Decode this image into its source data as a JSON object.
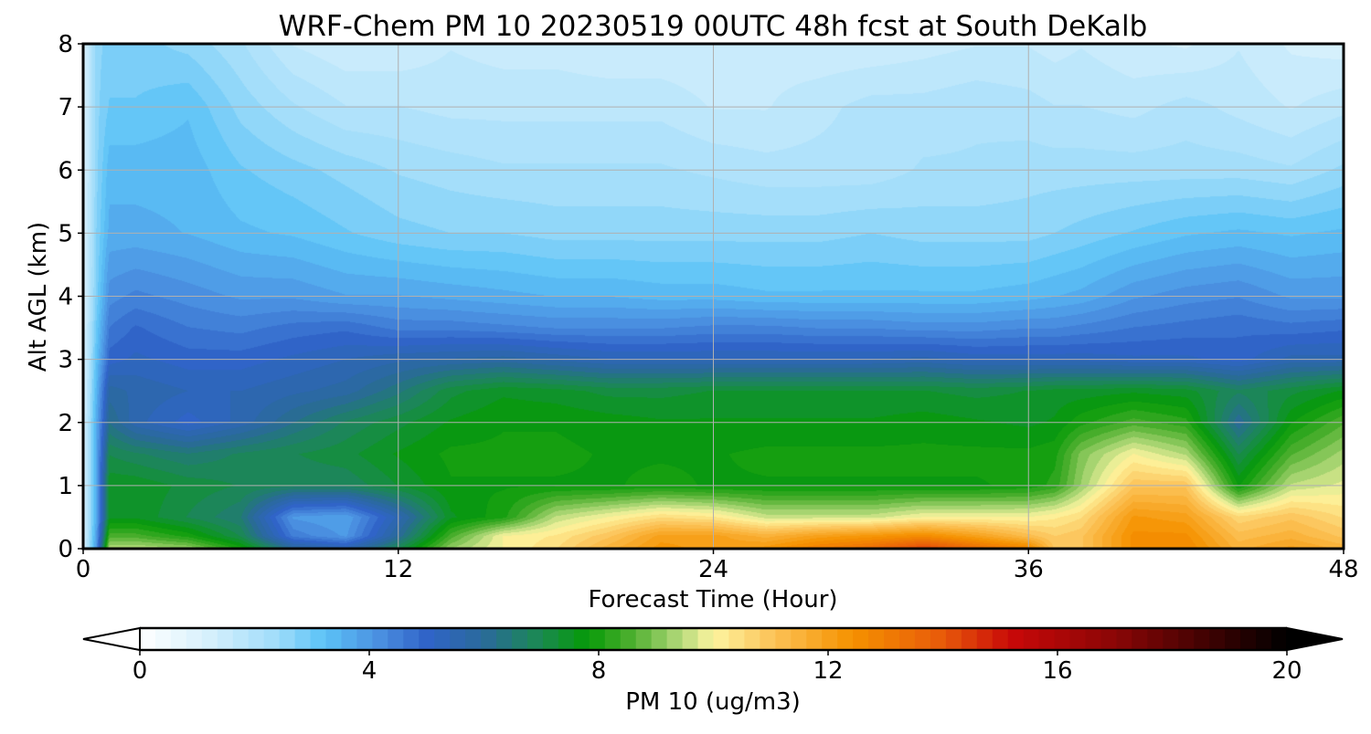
{
  "chart_data": {
    "type": "heatmap",
    "title": "WRF-Chem PM 10  20230519 00UTC 48h fcst at South DeKalb",
    "xlabel": "Forecast Time (Hour)",
    "ylabel": "Alt AGL (km)",
    "xlim": [
      0,
      48
    ],
    "ylim": [
      0,
      8
    ],
    "x_ticks": [
      0,
      12,
      24,
      36,
      48
    ],
    "y_ticks": [
      0,
      1,
      2,
      3,
      4,
      5,
      6,
      7,
      8
    ],
    "grid": true,
    "colorbar": {
      "label": "PM 10  (ug/m3)",
      "ticks": [
        0,
        4,
        8,
        12,
        16,
        20
      ],
      "range": [
        0,
        20
      ],
      "extend": "both",
      "stops": [
        {
          "v": 0,
          "c": "#ffffff"
        },
        {
          "v": 1.2,
          "c": "#d6f0fc"
        },
        {
          "v": 2.4,
          "c": "#9fdcfa"
        },
        {
          "v": 3.2,
          "c": "#5cc3f7"
        },
        {
          "v": 4.2,
          "c": "#4a8ee0"
        },
        {
          "v": 5.0,
          "c": "#3064c8"
        },
        {
          "v": 6.0,
          "c": "#2a6a9a"
        },
        {
          "v": 7.0,
          "c": "#1a8a50"
        },
        {
          "v": 7.8,
          "c": "#069a08"
        },
        {
          "v": 8.6,
          "c": "#50b030"
        },
        {
          "v": 9.4,
          "c": "#b0d878"
        },
        {
          "v": 10.0,
          "c": "#fdf5a0"
        },
        {
          "v": 11.0,
          "c": "#fcc45a"
        },
        {
          "v": 12.4,
          "c": "#f59200"
        },
        {
          "v": 14.0,
          "c": "#e85a0a"
        },
        {
          "v": 15.2,
          "c": "#c80808"
        },
        {
          "v": 17.0,
          "c": "#8a0606"
        },
        {
          "v": 18.6,
          "c": "#400202"
        },
        {
          "v": 20,
          "c": "#000000"
        }
      ]
    },
    "x": [
      0,
      0.5,
      1,
      2,
      4,
      6,
      8,
      10,
      12,
      14,
      16,
      18,
      20,
      22,
      24,
      26,
      28,
      30,
      32,
      34,
      36,
      37,
      38,
      40,
      42,
      44,
      46,
      48
    ],
    "y": [
      0,
      0.2,
      0.5,
      1.0,
      1.5,
      2.0,
      2.5,
      3.0,
      3.5,
      4.0,
      5.0,
      6.0,
      7.0,
      8.0
    ],
    "z": [
      [
        1.0,
        4.0,
        9.5,
        9.5,
        9.2,
        8.0,
        6.0,
        5.5,
        7.0,
        9.2,
        10.0,
        10.5,
        11.5,
        12.3,
        12.0,
        12.3,
        13.0,
        13.5,
        14.5,
        13.5,
        12.8,
        11.0,
        11.0,
        12.5,
        12.7,
        11.5,
        12.0,
        11.5
      ],
      [
        1.0,
        3.8,
        8.5,
        8.5,
        8.0,
        7.0,
        4.5,
        4.0,
        6.0,
        8.5,
        10.0,
        10.3,
        11.0,
        12.0,
        12.0,
        11.5,
        12.0,
        12.3,
        12.6,
        12.0,
        11.2,
        10.8,
        11.0,
        12.5,
        12.5,
        11.2,
        11.5,
        11.0
      ],
      [
        1.0,
        3.6,
        7.5,
        7.5,
        7.0,
        6.5,
        4.0,
        3.8,
        5.5,
        7.5,
        8.0,
        9.5,
        10.0,
        10.5,
        10.3,
        9.6,
        9.6,
        9.6,
        10.0,
        10.0,
        10.0,
        10.2,
        10.5,
        12.2,
        12.0,
        10.6,
        11.0,
        10.5
      ],
      [
        1.0,
        3.6,
        7.5,
        7.5,
        7.2,
        7.0,
        6.8,
        6.8,
        7.3,
        7.8,
        7.8,
        7.8,
        7.8,
        7.9,
        7.8,
        7.8,
        7.8,
        7.8,
        7.8,
        7.8,
        7.9,
        8.2,
        9.2,
        11.0,
        11.0,
        7.8,
        9.5,
        9.8
      ],
      [
        1.0,
        3.6,
        7.0,
        6.8,
        6.5,
        6.8,
        7.0,
        7.2,
        7.6,
        7.9,
        7.9,
        7.9,
        7.8,
        7.8,
        7.8,
        7.9,
        7.9,
        7.9,
        7.9,
        7.9,
        7.9,
        8.0,
        9.0,
        10.0,
        9.4,
        7.0,
        8.6,
        9.3
      ],
      [
        1.0,
        3.6,
        6.2,
        5.5,
        5.0,
        5.5,
        6.2,
        6.8,
        7.2,
        7.6,
        7.8,
        7.8,
        7.7,
        7.6,
        7.6,
        7.6,
        7.6,
        7.6,
        7.7,
        7.6,
        7.5,
        7.6,
        8.0,
        8.5,
        8.2,
        6.0,
        7.8,
        8.6
      ],
      [
        1.0,
        3.4,
        5.8,
        5.6,
        5.4,
        5.4,
        5.6,
        5.8,
        6.4,
        7.2,
        7.5,
        7.4,
        7.2,
        7.2,
        7.3,
        7.3,
        7.3,
        7.3,
        7.3,
        7.2,
        7.3,
        7.4,
        7.4,
        7.5,
        7.4,
        6.8,
        7.2,
        7.6
      ],
      [
        1.0,
        3.2,
        5.0,
        5.2,
        5.0,
        5.0,
        5.2,
        5.4,
        5.6,
        5.7,
        5.8,
        5.6,
        5.4,
        5.4,
        5.4,
        5.4,
        5.4,
        5.4,
        5.5,
        5.3,
        5.3,
        5.3,
        5.3,
        5.2,
        5.2,
        5.0,
        5.5,
        5.5
      ],
      [
        1.0,
        3.0,
        4.6,
        4.9,
        4.6,
        4.5,
        4.7,
        4.8,
        4.5,
        4.5,
        4.4,
        4.3,
        4.3,
        4.3,
        4.4,
        4.4,
        4.3,
        4.3,
        4.2,
        4.2,
        4.3,
        4.3,
        4.4,
        4.6,
        4.7,
        4.8,
        4.7,
        4.8
      ],
      [
        1.0,
        2.8,
        4.2,
        4.4,
        4.2,
        4.0,
        4.0,
        3.8,
        3.8,
        3.7,
        3.6,
        3.5,
        3.5,
        3.4,
        3.4,
        3.3,
        3.3,
        3.3,
        3.3,
        3.3,
        3.4,
        3.5,
        3.6,
        4.0,
        4.2,
        4.3,
        4.0,
        4.0
      ],
      [
        1.0,
        2.7,
        3.6,
        3.6,
        3.5,
        3.3,
        3.2,
        3.0,
        2.8,
        2.7,
        2.7,
        2.6,
        2.6,
        2.6,
        2.6,
        2.6,
        2.6,
        2.7,
        2.6,
        2.6,
        2.6,
        2.7,
        2.8,
        3.0,
        3.2,
        3.3,
        3.2,
        3.3
      ],
      [
        1.0,
        2.6,
        3.4,
        3.4,
        3.4,
        3.0,
        2.8,
        2.6,
        2.4,
        2.3,
        2.2,
        2.2,
        2.2,
        2.2,
        2.1,
        2.0,
        2.0,
        2.0,
        2.2,
        2.2,
        2.3,
        2.3,
        2.3,
        2.3,
        2.3,
        2.3,
        2.2,
        2.5
      ],
      [
        1.0,
        2.6,
        3.0,
        3.0,
        3.2,
        2.6,
        2.2,
        1.9,
        1.9,
        1.8,
        1.8,
        1.8,
        1.8,
        1.8,
        1.6,
        1.6,
        1.8,
        2.0,
        2.0,
        2.1,
        2.0,
        1.9,
        1.9,
        1.8,
        2.0,
        1.8,
        1.6,
        1.8
      ],
      [
        1.0,
        2.6,
        2.8,
        2.8,
        2.6,
        2.2,
        1.6,
        1.4,
        1.4,
        1.6,
        1.5,
        1.5,
        1.4,
        1.4,
        1.4,
        1.5,
        1.4,
        1.4,
        1.5,
        1.6,
        1.6,
        1.5,
        1.6,
        1.4,
        1.3,
        1.6,
        1.3,
        1.2
      ]
    ]
  }
}
